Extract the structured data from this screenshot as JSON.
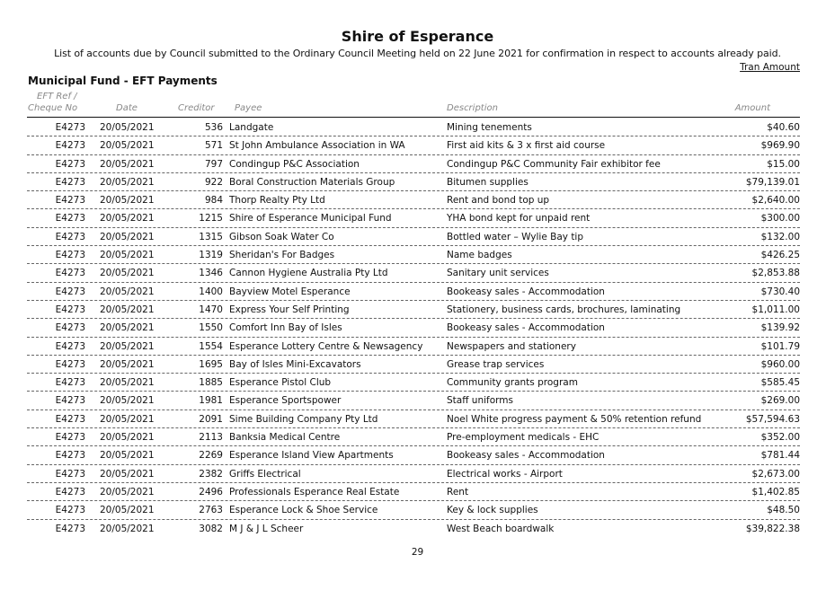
{
  "title": "Shire of Esperance",
  "subtitle": "List of accounts due by Council submitted to the Ordinary Council Meeting held on 22 June 2021 for confirmation in respect to accounts already paid.",
  "tran_amount_label": "Tran Amount",
  "section_title": "Municipal Fund - EFT Payments",
  "columns": {
    "ref_line1": "EFT Ref /",
    "ref_line2": "Cheque No",
    "date": "Date",
    "creditor": "Creditor",
    "payee": "Payee",
    "description": "Description",
    "amount": "Amount"
  },
  "rows": [
    {
      "ref": "E4273",
      "date": "20/05/2021",
      "creditor": "536",
      "payee": "Landgate",
      "description": "Mining tenements",
      "amount": "$40.60"
    },
    {
      "ref": "E4273",
      "date": "20/05/2021",
      "creditor": "571",
      "payee": "St John Ambulance Association in WA",
      "description": "First aid kits & 3 x first aid course",
      "amount": "$969.90"
    },
    {
      "ref": "E4273",
      "date": "20/05/2021",
      "creditor": "797",
      "payee": "Condingup P&C Association",
      "description": "Condingup P&C Community Fair exhibitor fee",
      "amount": "$15.00"
    },
    {
      "ref": "E4273",
      "date": "20/05/2021",
      "creditor": "922",
      "payee": "Boral Construction Materials Group",
      "description": "Bitumen supplies",
      "amount": "$79,139.01"
    },
    {
      "ref": "E4273",
      "date": "20/05/2021",
      "creditor": "984",
      "payee": "Thorp Realty Pty Ltd",
      "description": "Rent and bond top up",
      "amount": "$2,640.00"
    },
    {
      "ref": "E4273",
      "date": "20/05/2021",
      "creditor": "1215",
      "payee": "Shire of Esperance Municipal Fund",
      "description": "YHA bond kept for unpaid rent",
      "amount": "$300.00"
    },
    {
      "ref": "E4273",
      "date": "20/05/2021",
      "creditor": "1315",
      "payee": "Gibson Soak Water Co",
      "description": "Bottled water – Wylie Bay tip",
      "amount": "$132.00"
    },
    {
      "ref": "E4273",
      "date": "20/05/2021",
      "creditor": "1319",
      "payee": "Sheridan's For Badges",
      "description": "Name badges",
      "amount": "$426.25"
    },
    {
      "ref": "E4273",
      "date": "20/05/2021",
      "creditor": "1346",
      "payee": "Cannon Hygiene Australia Pty Ltd",
      "description": "Sanitary unit services",
      "amount": "$2,853.88"
    },
    {
      "ref": "E4273",
      "date": "20/05/2021",
      "creditor": "1400",
      "payee": "Bayview Motel Esperance",
      "description": "Bookeasy sales - Accommodation",
      "amount": "$730.40"
    },
    {
      "ref": "E4273",
      "date": "20/05/2021",
      "creditor": "1470",
      "payee": "Express Your Self Printing",
      "description": "Stationery, business cards, brochures, laminating",
      "amount": "$1,011.00"
    },
    {
      "ref": "E4273",
      "date": "20/05/2021",
      "creditor": "1550",
      "payee": "Comfort Inn Bay of Isles",
      "description": "Bookeasy sales - Accommodation",
      "amount": "$139.92"
    },
    {
      "ref": "E4273",
      "date": "20/05/2021",
      "creditor": "1554",
      "payee": "Esperance Lottery Centre & Newsagency",
      "description": "Newspapers and stationery",
      "amount": "$101.79"
    },
    {
      "ref": "E4273",
      "date": "20/05/2021",
      "creditor": "1695",
      "payee": "Bay of Isles Mini-Excavators",
      "description": "Grease trap services",
      "amount": "$960.00"
    },
    {
      "ref": "E4273",
      "date": "20/05/2021",
      "creditor": "1885",
      "payee": "Esperance Pistol Club",
      "description": "Community grants program",
      "amount": "$585.45"
    },
    {
      "ref": "E4273",
      "date": "20/05/2021",
      "creditor": "1981",
      "payee": "Esperance Sportspower",
      "description": "Staff uniforms",
      "amount": "$269.00"
    },
    {
      "ref": "E4273",
      "date": "20/05/2021",
      "creditor": "2091",
      "payee": "Sime Building Company Pty Ltd",
      "description": "Noel White progress payment & 50% retention refund",
      "amount": "$57,594.63"
    },
    {
      "ref": "E4273",
      "date": "20/05/2021",
      "creditor": "2113",
      "payee": "Banksia Medical Centre",
      "description": "Pre-employment medicals - EHC",
      "amount": "$352.00"
    },
    {
      "ref": "E4273",
      "date": "20/05/2021",
      "creditor": "2269",
      "payee": "Esperance Island View Apartments",
      "description": "Bookeasy sales - Accommodation",
      "amount": "$781.44"
    },
    {
      "ref": "E4273",
      "date": "20/05/2021",
      "creditor": "2382",
      "payee": "Griffs Electrical",
      "description": "Electrical works - Airport",
      "amount": "$2,673.00"
    },
    {
      "ref": "E4273",
      "date": "20/05/2021",
      "creditor": "2496",
      "payee": "Professionals Esperance Real Estate",
      "description": "Rent",
      "amount": "$1,402.85"
    },
    {
      "ref": "E4273",
      "date": "20/05/2021",
      "creditor": "2763",
      "payee": "Esperance Lock & Shoe Service",
      "description": "Key & lock supplies",
      "amount": "$48.50"
    },
    {
      "ref": "E4273",
      "date": "20/05/2021",
      "creditor": "3082",
      "payee": "M J & J L Scheer",
      "description": "West Beach boardwalk",
      "amount": "$39,822.38"
    }
  ],
  "page_number": "29"
}
